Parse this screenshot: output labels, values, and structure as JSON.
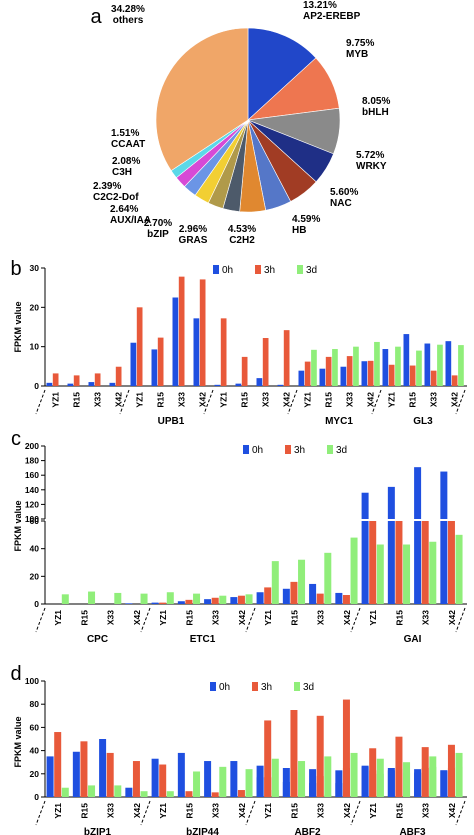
{
  "chart_data": [
    {
      "type": "pie",
      "panel_label": "a",
      "slices": [
        {
          "label": "AP2-EREBP",
          "pct_text": "13.21%",
          "value": 13.21,
          "color": "#2147c9"
        },
        {
          "label": "MYB",
          "pct_text": "9.75%",
          "value": 9.75,
          "color": "#ee7650"
        },
        {
          "label": "bHLH",
          "pct_text": "8.05%",
          "value": 8.05,
          "color": "#8a8a8a"
        },
        {
          "label": "WRKY",
          "pct_text": "5.72%",
          "value": 5.72,
          "color": "#1f2f86"
        },
        {
          "label": "NAC",
          "pct_text": "5.60%",
          "value": 5.6,
          "color": "#a13c24"
        },
        {
          "label": "HB",
          "pct_text": "4.59%",
          "value": 4.59,
          "color": "#5577c8"
        },
        {
          "label": "C2H2",
          "pct_text": "4.53%",
          "value": 4.53,
          "color": "#e08830"
        },
        {
          "label": "GRAS",
          "pct_text": "2.96%",
          "value": 2.96,
          "color": "#4d5a6a"
        },
        {
          "label": "bZIP",
          "pct_text": "2.70%",
          "value": 2.7,
          "color": "#b09a4a"
        },
        {
          "label": "AUX/IAA",
          "pct_text": "2.64%",
          "value": 2.64,
          "color": "#f2cf33"
        },
        {
          "label": "C2C2-Dof",
          "pct_text": "2.39%",
          "value": 2.39,
          "color": "#6b95e6"
        },
        {
          "label": "C3H",
          "pct_text": "2.08%",
          "value": 2.08,
          "color": "#d64ad6"
        },
        {
          "label": "CCAAT",
          "pct_text": "1.51%",
          "value": 1.51,
          "color": "#5bd8e8"
        },
        {
          "label": "others",
          "pct_text": "34.28%",
          "value": 34.28,
          "color": "#f0a668"
        }
      ]
    },
    {
      "type": "bar",
      "panel_label": "b",
      "ylabel": "FPKM value",
      "ylim": [
        0,
        30
      ],
      "yticks": [
        "0",
        "10",
        "20",
        "30"
      ],
      "categories": [
        "YZ1",
        "R15",
        "X33",
        "X42",
        "YZ1",
        "R15",
        "X33",
        "X42",
        "YZ1",
        "R15",
        "X33",
        "X42",
        "YZ1",
        "R15",
        "X33",
        "X42",
        "YZ1",
        "R15",
        "X33",
        "X42"
      ],
      "groups": [
        "",
        "UPB1",
        "",
        "MYC1",
        "GL3"
      ],
      "series": [
        {
          "name": "0h",
          "color": "#1f4fe0",
          "values": [
            0.8,
            0.6,
            1.0,
            0.8,
            11.0,
            9.3,
            22.5,
            17.2,
            0.3,
            0.6,
            2.0,
            0.3,
            3.9,
            4.4,
            4.9,
            6.3,
            9.4,
            13.2,
            10.8,
            11.4
          ]
        },
        {
          "name": "3h",
          "color": "#e8593a",
          "values": [
            3.2,
            2.7,
            3.2,
            4.9,
            20.0,
            12.3,
            27.8,
            27.1,
            17.2,
            7.4,
            12.2,
            14.2,
            6.2,
            7.4,
            7.6,
            6.4,
            5.4,
            5.2,
            3.9,
            2.7
          ]
        },
        {
          "name": "3d",
          "color": "#90ee7a",
          "values": [
            0,
            0,
            0,
            0,
            0,
            0,
            0,
            0,
            0,
            0,
            0,
            0,
            9.2,
            9.4,
            10.0,
            11.2,
            10.0,
            9.0,
            10.5,
            10.4
          ]
        }
      ]
    },
    {
      "type": "bar",
      "panel_label": "c",
      "ylabel": "FPKM value",
      "ylim": [
        0,
        200
      ],
      "axis_break": [
        60,
        100
      ],
      "yticks": [
        "0",
        "20",
        "40",
        "60",
        "100",
        "120",
        "140",
        "160",
        "180",
        "200"
      ],
      "categories": [
        "YZ1",
        "R15",
        "X33",
        "X42",
        "YZ1",
        "R15",
        "X33",
        "X42",
        "YZ1",
        "R15",
        "X33",
        "X42",
        "YZ1",
        "R15",
        "X33",
        "X42"
      ],
      "groups": [
        "CPC",
        "ETC1",
        "",
        "GAI"
      ],
      "series": [
        {
          "name": "0h",
          "color": "#1f4fe0",
          "values": [
            0,
            0,
            0,
            0.5,
            1.0,
            2.0,
            3.5,
            5.0,
            8.5,
            11.0,
            14.5,
            8.0,
            136,
            144,
            171,
            165
          ]
        },
        {
          "name": "3h",
          "color": "#e8593a",
          "values": [
            0,
            0,
            0,
            0,
            1.0,
            3.0,
            4.5,
            6.0,
            12.0,
            16.0,
            7.5,
            6.5,
            60,
            60,
            60,
            60
          ]
        },
        {
          "name": "3d",
          "color": "#90ee7a",
          "values": [
            7.0,
            9.0,
            8.0,
            7.5,
            8.5,
            7.5,
            6.0,
            7.0,
            31.0,
            32.0,
            37.0,
            48.0,
            43,
            43,
            45,
            50
          ]
        }
      ]
    },
    {
      "type": "bar",
      "panel_label": "d",
      "ylabel": "FPKM value",
      "ylim": [
        0,
        100
      ],
      "yticks": [
        "0",
        "20",
        "40",
        "60",
        "80",
        "100"
      ],
      "categories": [
        "YZ1",
        "R15",
        "X33",
        "X42",
        "YZ1",
        "R15",
        "X33",
        "X42",
        "YZ1",
        "R15",
        "X33",
        "X42",
        "YZ1",
        "R15",
        "X33",
        "X42"
      ],
      "groups": [
        "bZIP1",
        "bZIP44",
        "ABF2",
        "ABF3"
      ],
      "series": [
        {
          "name": "0h",
          "color": "#1f4fe0",
          "values": [
            35,
            39,
            50,
            8,
            33,
            38,
            31,
            31,
            17,
            13,
            12,
            12,
            27,
            25,
            24,
            23
          ]
        },
        {
          "name": "3h",
          "color": "#e8593a",
          "values": [
            56,
            48,
            38,
            31,
            28,
            5,
            4,
            6,
            17,
            22,
            18,
            25,
            23,
            24,
            25,
            25
          ]
        },
        {
          "name": "3d",
          "color": "#90ee7a",
          "values": [
            8,
            10,
            10,
            5,
            5,
            22,
            26,
            24,
            6,
            3,
            2,
            4,
            33,
            30,
            35,
            38
          ]
        }
      ]
    },
    {
      "type": "bar",
      "panel_label": "",
      "categories": [
        "ABF2 YZ1",
        "ABF2 R15",
        "ABF2 X33",
        "ABF2 X42",
        "ABF3 YZ1",
        "ABF3 R15",
        "ABF3 X33",
        "ABF3 X42"
      ],
      "series": [
        {
          "name": "0h",
          "values": [
            27,
            25,
            24,
            23,
            26,
            23,
            21,
            23
          ]
        },
        {
          "name": "3h",
          "values": [
            66,
            75,
            70,
            84,
            42,
            52,
            43,
            45
          ]
        },
        {
          "name": "3d",
          "values": [
            33,
            31,
            35,
            38,
            20,
            21,
            26,
            26
          ]
        }
      ]
    }
  ]
}
